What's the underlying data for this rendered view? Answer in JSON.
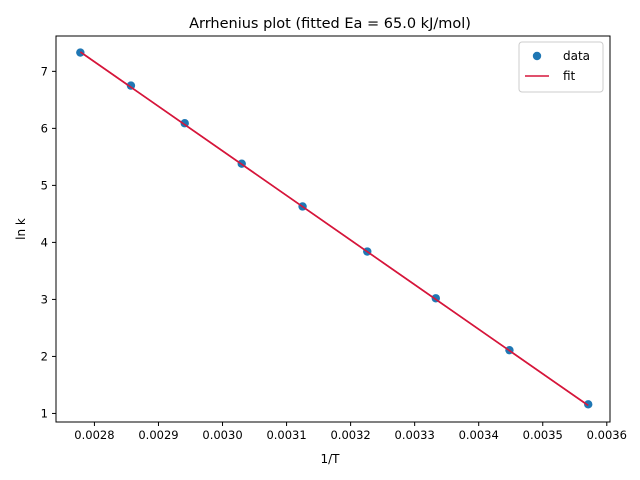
{
  "chart_data": {
    "type": "scatter",
    "title": "Arrhenius plot (fitted Ea = 65.0 kJ/mol)",
    "xlabel": "1/T",
    "ylabel": "ln k",
    "xlim": [
      0.00274,
      0.003605
    ],
    "ylim": [
      0.85,
      7.62
    ],
    "x_ticks": [
      0.0028,
      0.0029,
      0.003,
      0.0031,
      0.0032,
      0.0033,
      0.0034,
      0.0035,
      0.0036
    ],
    "x_tick_labels": [
      "0.0028",
      "0.0029",
      "0.0030",
      "0.0031",
      "0.0032",
      "0.0033",
      "0.0034",
      "0.0035",
      "0.0036"
    ],
    "y_ticks": [
      1,
      2,
      3,
      4,
      5,
      6,
      7
    ],
    "y_tick_labels": [
      "1",
      "2",
      "3",
      "4",
      "5",
      "6",
      "7"
    ],
    "grid": false,
    "legend_position": "top-right",
    "series": [
      {
        "name": "data",
        "kind": "scatter",
        "color": "#1f77b4",
        "x": [
          0.002778,
          0.002857,
          0.002941,
          0.00303,
          0.003125,
          0.003226,
          0.003333,
          0.003448,
          0.003571
        ],
        "y": [
          7.33,
          6.75,
          6.09,
          5.38,
          4.63,
          3.84,
          3.02,
          2.11,
          1.16
        ]
      },
      {
        "name": "fit",
        "kind": "line",
        "color": "#d6163b",
        "x": [
          0.002778,
          0.003571
        ],
        "y": [
          7.34,
          1.14
        ]
      }
    ]
  }
}
